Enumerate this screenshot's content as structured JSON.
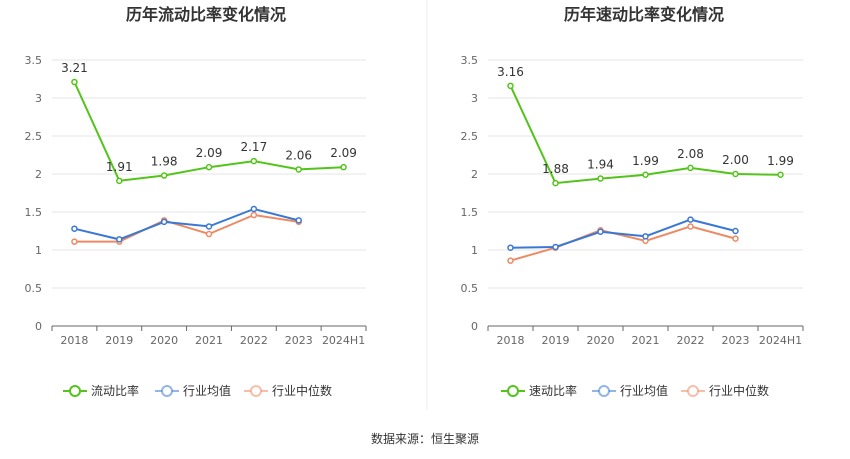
{
  "source_label": "数据来源：恒生聚源",
  "colors": {
    "primary": "#52c41a",
    "industry_avg": "#3a78d4",
    "industry_median": "#ee8a63",
    "grid": "#e6e6e6",
    "axis": "#666666"
  },
  "chart_data": [
    {
      "type": "line",
      "title": "历年流动比率变化情况",
      "categories": [
        "2018",
        "2019",
        "2020",
        "2021",
        "2022",
        "2023",
        "2024H1"
      ],
      "ylim": [
        0,
        3.5
      ],
      "yticks": [
        "0",
        "0.5",
        "1",
        "1.5",
        "2",
        "2.5",
        "3",
        "3.5"
      ],
      "grid": true,
      "legend_position": "bottom",
      "series": [
        {
          "name": "流动比率",
          "values": [
            3.21,
            1.91,
            1.98,
            2.09,
            2.17,
            2.06,
            2.09
          ],
          "labels": [
            "3.21",
            "1.91",
            "1.98",
            "2.09",
            "2.17",
            "2.06",
            "2.09"
          ]
        },
        {
          "name": "行业均值",
          "values": [
            1.28,
            1.14,
            1.37,
            1.31,
            1.54,
            1.39,
            null
          ]
        },
        {
          "name": "行业中位数",
          "values": [
            1.11,
            1.11,
            1.39,
            1.21,
            1.46,
            1.37,
            null
          ]
        }
      ]
    },
    {
      "type": "line",
      "title": "历年速动比率变化情况",
      "categories": [
        "2018",
        "2019",
        "2020",
        "2021",
        "2022",
        "2023",
        "2024H1"
      ],
      "ylim": [
        0,
        3.5
      ],
      "yticks": [
        "0",
        "0.5",
        "1",
        "1.5",
        "2",
        "2.5",
        "3",
        "3.5"
      ],
      "grid": true,
      "legend_position": "bottom",
      "series": [
        {
          "name": "速动比率",
          "values": [
            3.16,
            1.88,
            1.94,
            1.99,
            2.08,
            2.0,
            1.99
          ],
          "labels": [
            "3.16",
            "1.88",
            "1.94",
            "1.99",
            "2.08",
            "2.00",
            "1.99"
          ]
        },
        {
          "name": "行业均值",
          "values": [
            1.03,
            1.04,
            1.24,
            1.18,
            1.4,
            1.25,
            null
          ]
        },
        {
          "name": "行业中位数",
          "values": [
            0.86,
            1.03,
            1.26,
            1.12,
            1.31,
            1.15,
            null
          ]
        }
      ]
    }
  ]
}
